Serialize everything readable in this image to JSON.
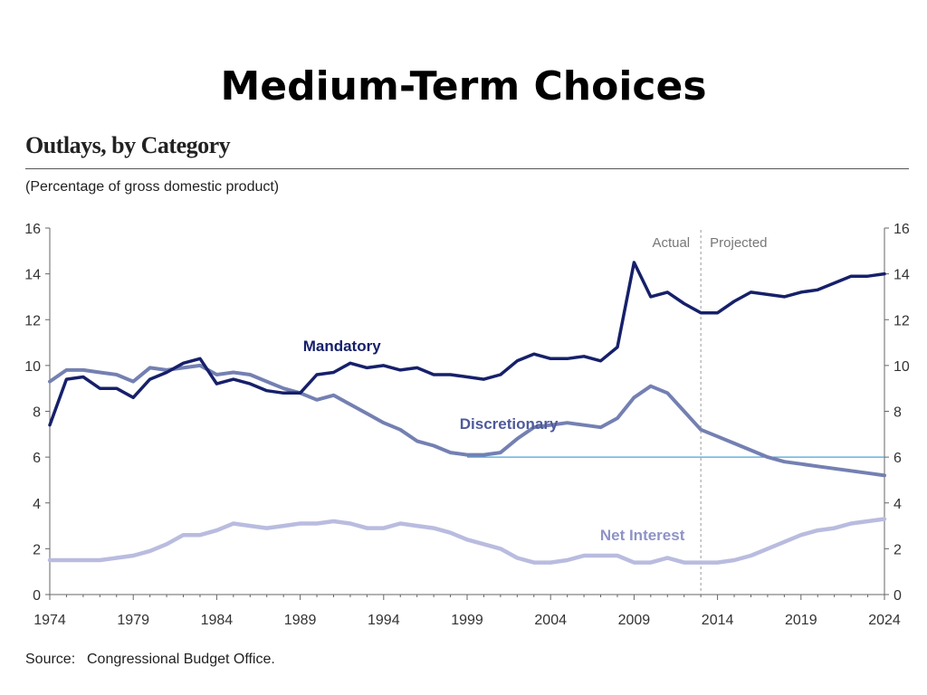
{
  "slide": {
    "title": "Medium-Term Choices"
  },
  "source": {
    "label": "Source:",
    "text": "Congressional Budget Office."
  },
  "chart_data": {
    "type": "line",
    "title": "Outlays, by Category",
    "subtitle": "(Percentage of gross domestic product)",
    "xlabel": "",
    "ylabel": "",
    "xlim": [
      1974,
      2024
    ],
    "ylim": [
      0,
      16
    ],
    "x_ticks": [
      1974,
      1979,
      1984,
      1989,
      1994,
      1999,
      2004,
      2009,
      2014,
      2019,
      2024
    ],
    "y_ticks": [
      0,
      2,
      4,
      6,
      8,
      10,
      12,
      14,
      16
    ],
    "y_axis_both_sides": true,
    "grid": false,
    "annotations": {
      "actual": "Actual",
      "projected": "Projected",
      "divider_year": 2013
    },
    "reference_line": {
      "value": 6,
      "from": 1999,
      "to": 2024,
      "color": "#4aa3d8"
    },
    "x": [
      1974,
      1975,
      1976,
      1977,
      1978,
      1979,
      1980,
      1981,
      1982,
      1983,
      1984,
      1985,
      1986,
      1987,
      1988,
      1989,
      1990,
      1991,
      1992,
      1993,
      1994,
      1995,
      1996,
      1997,
      1998,
      1999,
      2000,
      2001,
      2002,
      2003,
      2004,
      2005,
      2006,
      2007,
      2008,
      2009,
      2010,
      2011,
      2012,
      2013,
      2014,
      2015,
      2016,
      2017,
      2018,
      2019,
      2020,
      2021,
      2022,
      2023,
      2024
    ],
    "series": [
      {
        "name": "Mandatory",
        "color": "#16206a",
        "values": [
          7.4,
          9.4,
          9.5,
          9.0,
          9.0,
          8.6,
          9.4,
          9.7,
          10.1,
          10.3,
          9.2,
          9.4,
          9.2,
          8.9,
          8.8,
          8.8,
          9.6,
          9.7,
          10.1,
          9.9,
          10.0,
          9.8,
          9.9,
          9.6,
          9.6,
          9.5,
          9.4,
          9.6,
          10.2,
          10.5,
          10.3,
          10.3,
          10.4,
          10.2,
          10.8,
          14.5,
          13.0,
          13.2,
          12.7,
          12.3,
          12.3,
          12.8,
          13.2,
          13.1,
          13.0,
          13.2,
          13.3,
          13.6,
          13.9,
          13.9,
          14.0
        ]
      },
      {
        "name": "Discretionary",
        "color": "#7480b2",
        "values": [
          9.3,
          9.8,
          9.8,
          9.7,
          9.6,
          9.3,
          9.9,
          9.8,
          9.9,
          10.0,
          9.6,
          9.7,
          9.6,
          9.3,
          9.0,
          8.8,
          8.5,
          8.7,
          8.3,
          7.9,
          7.5,
          7.2,
          6.7,
          6.5,
          6.2,
          6.1,
          6.1,
          6.2,
          6.8,
          7.3,
          7.4,
          7.5,
          7.4,
          7.3,
          7.7,
          8.6,
          9.1,
          8.8,
          8.0,
          7.2,
          6.9,
          6.6,
          6.3,
          6.0,
          5.8,
          5.7,
          5.6,
          5.5,
          5.4,
          5.3,
          5.2
        ]
      },
      {
        "name": "Net Interest",
        "color": "#b9bcdf",
        "values": [
          1.5,
          1.5,
          1.5,
          1.5,
          1.6,
          1.7,
          1.9,
          2.2,
          2.6,
          2.6,
          2.8,
          3.1,
          3.0,
          2.9,
          3.0,
          3.1,
          3.1,
          3.2,
          3.1,
          2.9,
          2.9,
          3.1,
          3.0,
          2.9,
          2.7,
          2.4,
          2.2,
          2.0,
          1.6,
          1.4,
          1.4,
          1.5,
          1.7,
          1.7,
          1.7,
          1.4,
          1.4,
          1.6,
          1.4,
          1.4,
          1.4,
          1.5,
          1.7,
          2.0,
          2.3,
          2.6,
          2.8,
          2.9,
          3.1,
          3.2,
          3.3
        ]
      }
    ]
  }
}
